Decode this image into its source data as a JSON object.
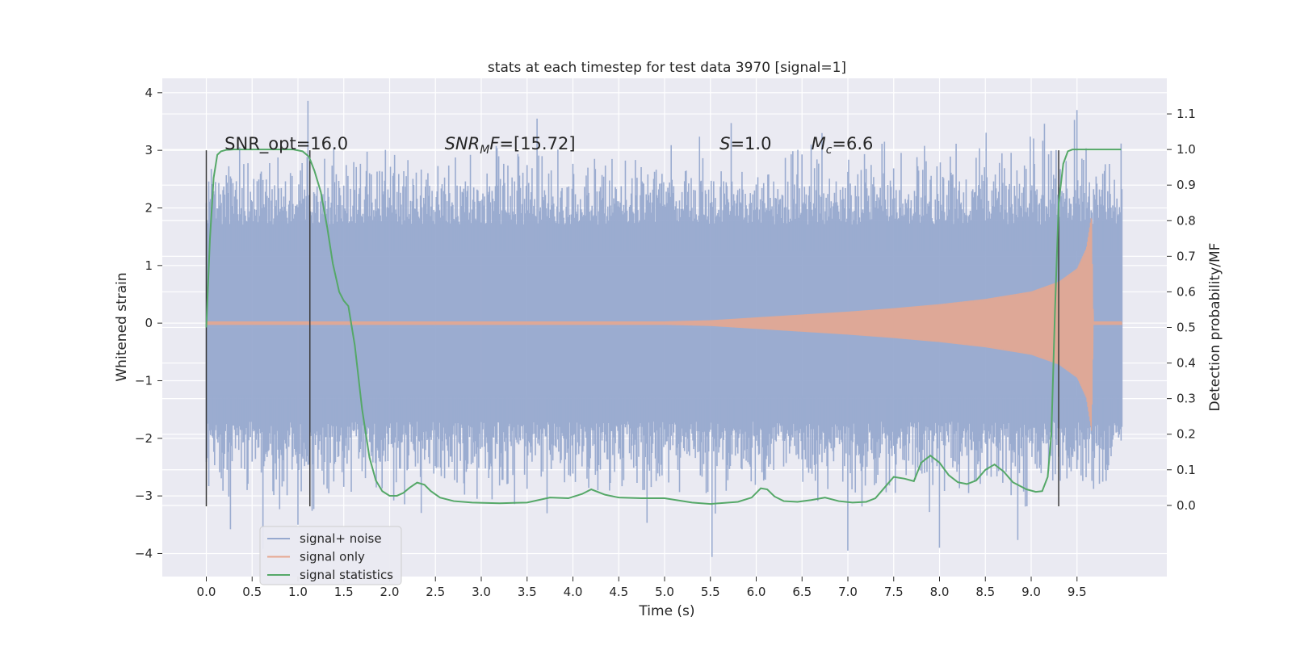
{
  "chart_data": {
    "type": "line",
    "title": "stats at each timestep for test data 3970 [signal=1]",
    "xlabel": "Time (s)",
    "ylabel": "Whitened strain",
    "y2label": "Detection probability/MF",
    "xlim": [
      -0.48,
      10.48
    ],
    "ylim": [
      -4.4,
      4.25
    ],
    "y2lim": [
      -0.2,
      1.2
    ],
    "xticks": [
      "0.0",
      "0.5",
      "1.0",
      "1.5",
      "2.0",
      "2.5",
      "3.0",
      "3.5",
      "4.0",
      "4.5",
      "5.0",
      "5.5",
      "6.0",
      "6.5",
      "7.0",
      "7.5",
      "8.0",
      "8.5",
      "9.0",
      "9.5"
    ],
    "yticks": [
      "4",
      "3",
      "2",
      "1",
      "0",
      "−1",
      "−2",
      "−3",
      "−4"
    ],
    "y2ticks": [
      "1.1",
      "1.0",
      "0.9",
      "0.8",
      "0.7",
      "0.6",
      "0.5",
      "0.4",
      "0.3",
      "0.2",
      "0.1",
      "0.0"
    ],
    "grid": true,
    "annotations": [
      {
        "text": "SNR_opt=16.0",
        "x": 0.2,
        "y": 3.0
      },
      {
        "text": "SNR",
        "sub": "M",
        "tail": "F=[15.72]",
        "x": 2.6,
        "y": 3.0
      },
      {
        "text": "S",
        "tail": "=1.0",
        "x": 5.6,
        "y": 3.0
      },
      {
        "text": "M",
        "sub": "c",
        "tail": "=6.6",
        "x": 6.6,
        "y": 3.0
      }
    ],
    "vlines": [
      0.0,
      1.13,
      9.3
    ],
    "legend": {
      "position": "lower-left",
      "entries": [
        {
          "name": "signal+ noise",
          "color": "#97a9cf"
        },
        {
          "name": "signal only",
          "color": "#e6a790"
        },
        {
          "name": "signal statistics",
          "color": "#55a868"
        }
      ]
    },
    "series": [
      {
        "name": "signal+ noise",
        "axis": "left",
        "style": "noise-band",
        "x_range": [
          0.0,
          9.99
        ],
        "typical_amplitude": 1.8,
        "peak_max": 3.86,
        "peak_min": -4.06
      },
      {
        "name": "signal only",
        "axis": "left",
        "style": "chirp",
        "x": [
          0.0,
          5.0,
          5.5,
          6.0,
          6.5,
          7.0,
          7.5,
          8.0,
          8.5,
          9.0,
          9.3,
          9.5,
          9.6,
          9.66,
          9.68,
          10.0
        ],
        "envelope": [
          0.03,
          0.03,
          0.05,
          0.1,
          0.15,
          0.2,
          0.26,
          0.33,
          0.42,
          0.55,
          0.72,
          0.95,
          1.3,
          1.9,
          0.03,
          0.03
        ]
      },
      {
        "name": "signal statistics",
        "axis": "right",
        "x": [
          0.0,
          0.04,
          0.08,
          0.12,
          0.16,
          0.22,
          0.3,
          0.4,
          0.6,
          0.8,
          0.95,
          1.05,
          1.12,
          1.18,
          1.25,
          1.32,
          1.38,
          1.45,
          1.5,
          1.55,
          1.62,
          1.7,
          1.78,
          1.85,
          1.92,
          2.0,
          2.08,
          2.15,
          2.22,
          2.3,
          2.38,
          2.45,
          2.55,
          2.7,
          2.9,
          3.2,
          3.5,
          3.75,
          3.95,
          4.1,
          4.2,
          4.35,
          4.5,
          4.75,
          5.0,
          5.3,
          5.5,
          5.8,
          5.95,
          6.05,
          6.12,
          6.2,
          6.3,
          6.45,
          6.6,
          6.75,
          6.9,
          7.05,
          7.2,
          7.3,
          7.4,
          7.5,
          7.62,
          7.72,
          7.8,
          7.9,
          8.0,
          8.1,
          8.2,
          8.3,
          8.4,
          8.5,
          8.6,
          8.7,
          8.8,
          8.95,
          9.05,
          9.12,
          9.18,
          9.22,
          9.26,
          9.3,
          9.35,
          9.4,
          9.45,
          9.5,
          9.6,
          9.75,
          9.9,
          9.98
        ],
        "values": [
          0.5,
          0.75,
          0.92,
          0.985,
          0.995,
          0.999,
          1.0,
          1.0,
          1.0,
          1.0,
          1.0,
          0.995,
          0.98,
          0.94,
          0.88,
          0.78,
          0.68,
          0.6,
          0.575,
          0.56,
          0.45,
          0.27,
          0.135,
          0.07,
          0.04,
          0.027,
          0.027,
          0.035,
          0.05,
          0.064,
          0.058,
          0.04,
          0.022,
          0.012,
          0.008,
          0.006,
          0.008,
          0.022,
          0.02,
          0.032,
          0.045,
          0.03,
          0.022,
          0.02,
          0.02,
          0.008,
          0.004,
          0.01,
          0.022,
          0.048,
          0.045,
          0.025,
          0.012,
          0.01,
          0.015,
          0.022,
          0.012,
          0.008,
          0.01,
          0.02,
          0.05,
          0.08,
          0.075,
          0.068,
          0.12,
          0.14,
          0.12,
          0.085,
          0.065,
          0.06,
          0.07,
          0.1,
          0.115,
          0.095,
          0.065,
          0.045,
          0.038,
          0.04,
          0.08,
          0.2,
          0.55,
          0.85,
          0.96,
          0.995,
          1.0,
          1.0,
          1.0,
          1.0,
          1.0,
          1.0
        ]
      }
    ]
  }
}
